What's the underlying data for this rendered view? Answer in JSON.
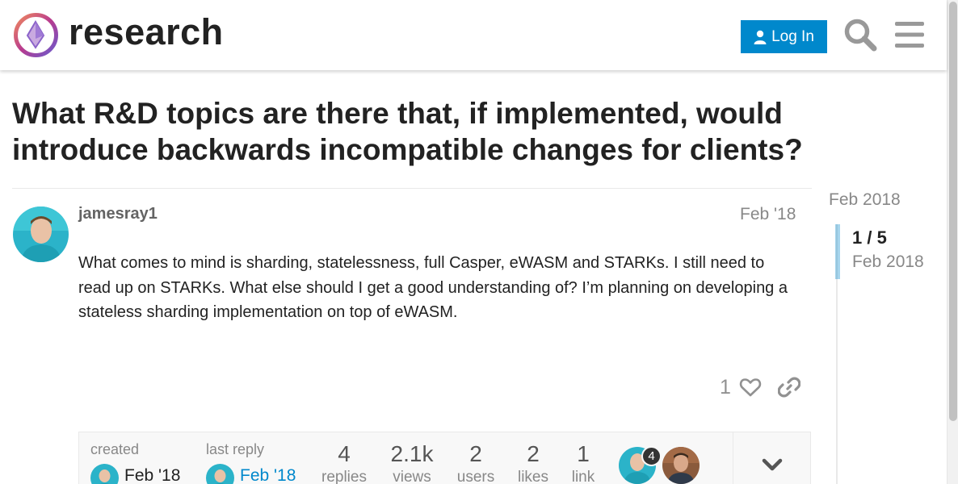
{
  "header": {
    "site_name": "research",
    "login_label": "Log In"
  },
  "topic": {
    "title": "What R&D topics are there that, if implemented, would introduce backwards incompatible changes for clients?"
  },
  "post": {
    "username": "jamesray1",
    "date": "Feb '18",
    "body": "What comes to mind is sharding, statelessness, full Casper, eWASM and STARKs. I still need to read up on STARKs. What else should I get a good understanding of? I’m planning on developing a stateless sharding implementation on top of eWASM.",
    "like_count": "1"
  },
  "topic_map": {
    "created_label": "created",
    "created_date": "Feb '18",
    "last_reply_label": "last reply",
    "last_reply_date": "Feb '18",
    "stats": [
      {
        "value": "4",
        "label": "replies"
      },
      {
        "value": "2.1k",
        "label": "views"
      },
      {
        "value": "2",
        "label": "users"
      },
      {
        "value": "2",
        "label": "likes"
      },
      {
        "value": "1",
        "label": "link"
      }
    ],
    "participant_badge": "4"
  },
  "timeline": {
    "top_date": "Feb 2018",
    "position": "1 / 5",
    "position_date": "Feb 2018"
  },
  "colors": {
    "accent": "#0088cc",
    "muted": "#888888"
  },
  "icons": [
    "logo-icon",
    "user-icon",
    "search-icon",
    "menu-icon",
    "heart-icon",
    "link-icon",
    "chevron-down-icon"
  ]
}
